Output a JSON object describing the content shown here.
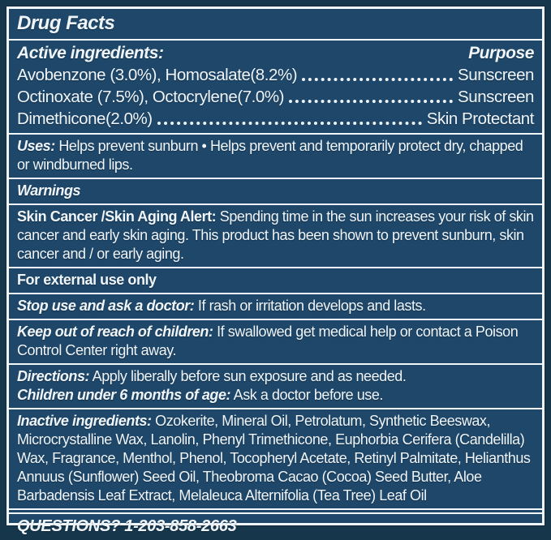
{
  "colors": {
    "page_background": "#16364c",
    "panel_background": "#1e4769",
    "line_and_text": "#f2f7fa"
  },
  "label": {
    "title": "Drug Facts",
    "active_ingredients": {
      "heading": "Active ingredients:",
      "purpose_heading": "Purpose",
      "rows": [
        {
          "ingredient": "Avobenzone (3.0%), Homosalate(8.2%)",
          "purpose": "Sunscreen"
        },
        {
          "ingredient": "Octinoxate (7.5%), Octocrylene(7.0%)",
          "purpose": "Sunscreen"
        },
        {
          "ingredient": "Dimethicone(2.0%)",
          "purpose": "Skin Protectant"
        }
      ]
    },
    "uses": {
      "heading": "Uses:",
      "text": "Helps prevent sunburn • Helps prevent and temporarily protect dry, chapped or windburned lips."
    },
    "warnings_heading": "Warnings",
    "skin_alert": {
      "heading": "Skin Cancer /Skin Aging Alert:",
      "text": "Spending time in the sun increases your risk of skin cancer and early skin aging. This product has been shown to prevent sunburn, skin cancer and / or early aging."
    },
    "external_use": "For external use only",
    "stop_use": {
      "heading": "Stop use and ask a doctor:",
      "text": "If rash or irritation develops and lasts."
    },
    "keep_out": {
      "heading": "Keep out of reach of children:",
      "text": "If swallowed get medical help or contact a Poison Control Center right away."
    },
    "directions": {
      "heading": "Directions:",
      "text": "Apply liberally before sun exposure and as needed."
    },
    "children_under_6": {
      "heading": "Children under 6 months of age:",
      "text": "Ask a doctor before use."
    },
    "inactive_ingredients": {
      "heading": "Inactive ingredients:",
      "text": "Ozokerite, Mineral Oil, Petrolatum, Synthetic Beeswax, Microcrystalline Wax, Lanolin, Phenyl Trimethicone, Euphorbia Cerifera (Candelilla) Wax, Fragrance, Menthol, Phenol, Tocopheryl Acetate, Retinyl Palmitate, Helianthus Annuus (Sunflower) Seed Oil, Theobroma Cacao (Cocoa) Seed Butter, Aloe Barbadensis Leaf Extract, Melaleuca Alternifolia (Tea Tree) Leaf Oil"
    },
    "questions": "QUESTIONS? 1-203-858-2663"
  }
}
